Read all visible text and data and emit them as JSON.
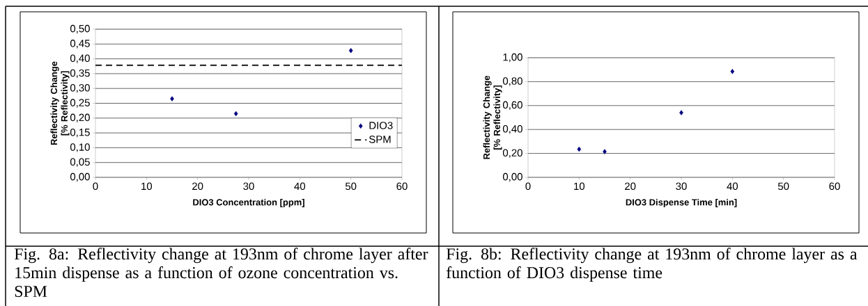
{
  "chart_data": [
    {
      "type": "scatter",
      "xlabel": "DIO3 Concentration [ppm]",
      "ylabel": "Reflectivity Change [% Reflectivity]",
      "series": [
        {
          "name": "DIO3",
          "color": "#000080",
          "marker": "diamond",
          "x": [
            15,
            27.5,
            50
          ],
          "values": [
            0.265,
            0.215,
            0.428
          ]
        },
        {
          "name": "SPM",
          "type": "line",
          "color": "#333333",
          "line_style": "dashed",
          "marker": "none",
          "x": [
            0,
            60
          ],
          "values": [
            0.378,
            0.378
          ]
        }
      ],
      "xlim": [
        0,
        60
      ],
      "xticks": [
        0,
        10,
        20,
        30,
        40,
        50,
        60
      ],
      "ylim": [
        0,
        0.5
      ],
      "yticks": [
        {
          "value": 0,
          "label": "0,00"
        },
        {
          "value": 0.05,
          "label": "0,05"
        },
        {
          "value": 0.1,
          "label": "0,10"
        },
        {
          "value": 0.15,
          "label": "0,15"
        },
        {
          "value": 0.2,
          "label": "0,20"
        },
        {
          "value": 0.25,
          "label": "0,25"
        },
        {
          "value": 0.3,
          "label": "0,30"
        },
        {
          "value": 0.35,
          "label": "0,35"
        },
        {
          "value": 0.4,
          "label": "0,40"
        },
        {
          "value": 0.45,
          "label": "0,45"
        },
        {
          "value": 0.5,
          "label": "0,50"
        }
      ],
      "grid": "y",
      "legend": "right",
      "annotations": [
        "Fig. 8a: Reflectivity change at 193nm of chrome layer after 15min dispense as a function of ozone concentration vs. SPM"
      ]
    },
    {
      "type": "scatter",
      "xlabel": "DIO3 Dispense Time [min]",
      "ylabel": "Reflectivity Change [% Reflectivity]",
      "series": [
        {
          "color": "#000080",
          "x": [
            10,
            15,
            30,
            40
          ],
          "values": [
            0.235,
            0.215,
            0.54,
            0.885
          ]
        }
      ],
      "xlim": [
        0,
        60
      ],
      "xticks": [
        0,
        10,
        20,
        30,
        40,
        50,
        60
      ],
      "ylim": [
        0,
        1
      ],
      "yticks": [
        {
          "value": 0,
          "label": "0,00"
        },
        {
          "value": 0.2,
          "label": "0,20"
        },
        {
          "value": 0.4,
          "label": "0,40"
        },
        {
          "value": 0.6,
          "label": "0,60"
        },
        {
          "value": 0.8,
          "label": "0,80"
        },
        {
          "value": 1,
          "label": "1,00"
        }
      ],
      "grid": "y",
      "marker": "diamond",
      "annotations": [
        "Fig. 8b: Reflectivity change at 193nm of chrome layer as a function of DIO3 dispense time"
      ]
    }
  ]
}
